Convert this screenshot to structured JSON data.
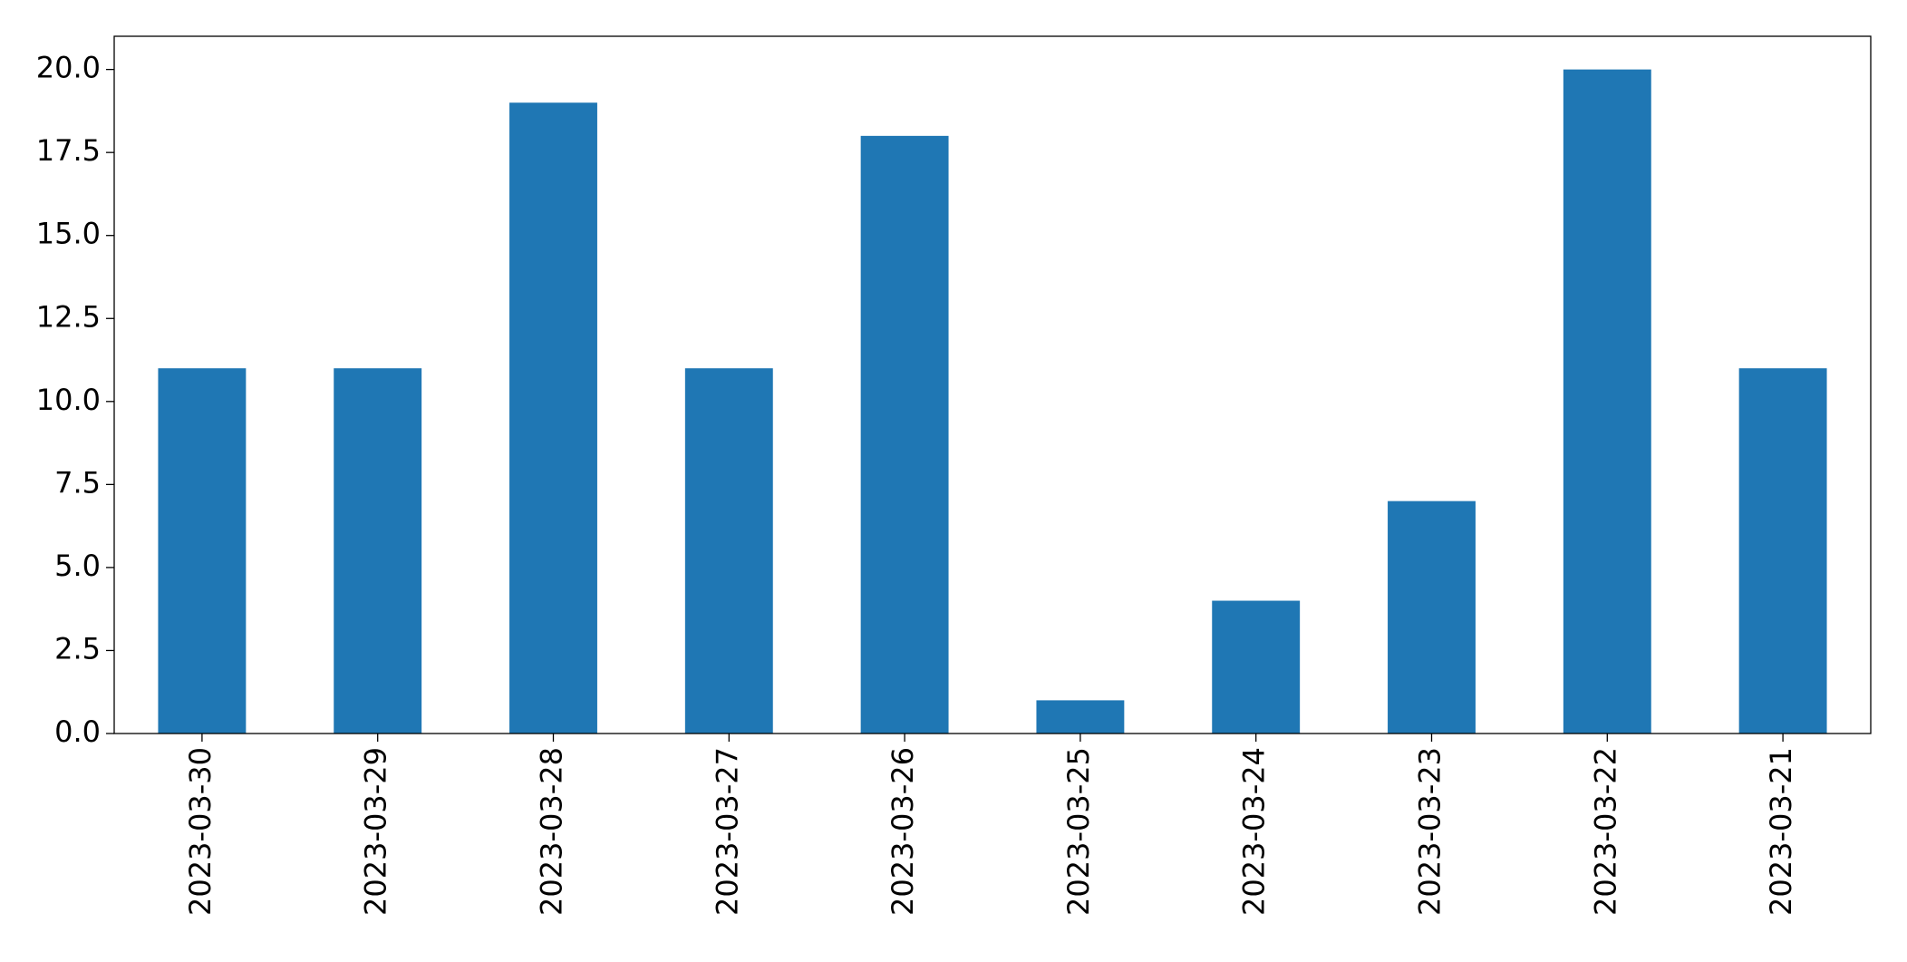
{
  "chart_data": {
    "type": "bar",
    "categories": [
      "2023-03-30",
      "2023-03-29",
      "2023-03-28",
      "2023-03-27",
      "2023-03-26",
      "2023-03-25",
      "2023-03-24",
      "2023-03-23",
      "2023-03-22",
      "2023-03-21"
    ],
    "values": [
      11,
      11,
      19,
      11,
      18,
      1,
      4,
      7,
      20,
      11
    ],
    "color": "#1f77b4",
    "ylim": [
      0,
      21
    ],
    "yticks": [
      {
        "value": 0,
        "label": "0.0"
      },
      {
        "value": 2.5,
        "label": "2.5"
      },
      {
        "value": 5,
        "label": "5.0"
      },
      {
        "value": 7.5,
        "label": "7.5"
      },
      {
        "value": 10,
        "label": "10.0"
      },
      {
        "value": 12.5,
        "label": "12.5"
      },
      {
        "value": 15,
        "label": "15.0"
      },
      {
        "value": 17.5,
        "label": "17.5"
      },
      {
        "value": 20,
        "label": "20.0"
      }
    ],
    "grid": false
  }
}
